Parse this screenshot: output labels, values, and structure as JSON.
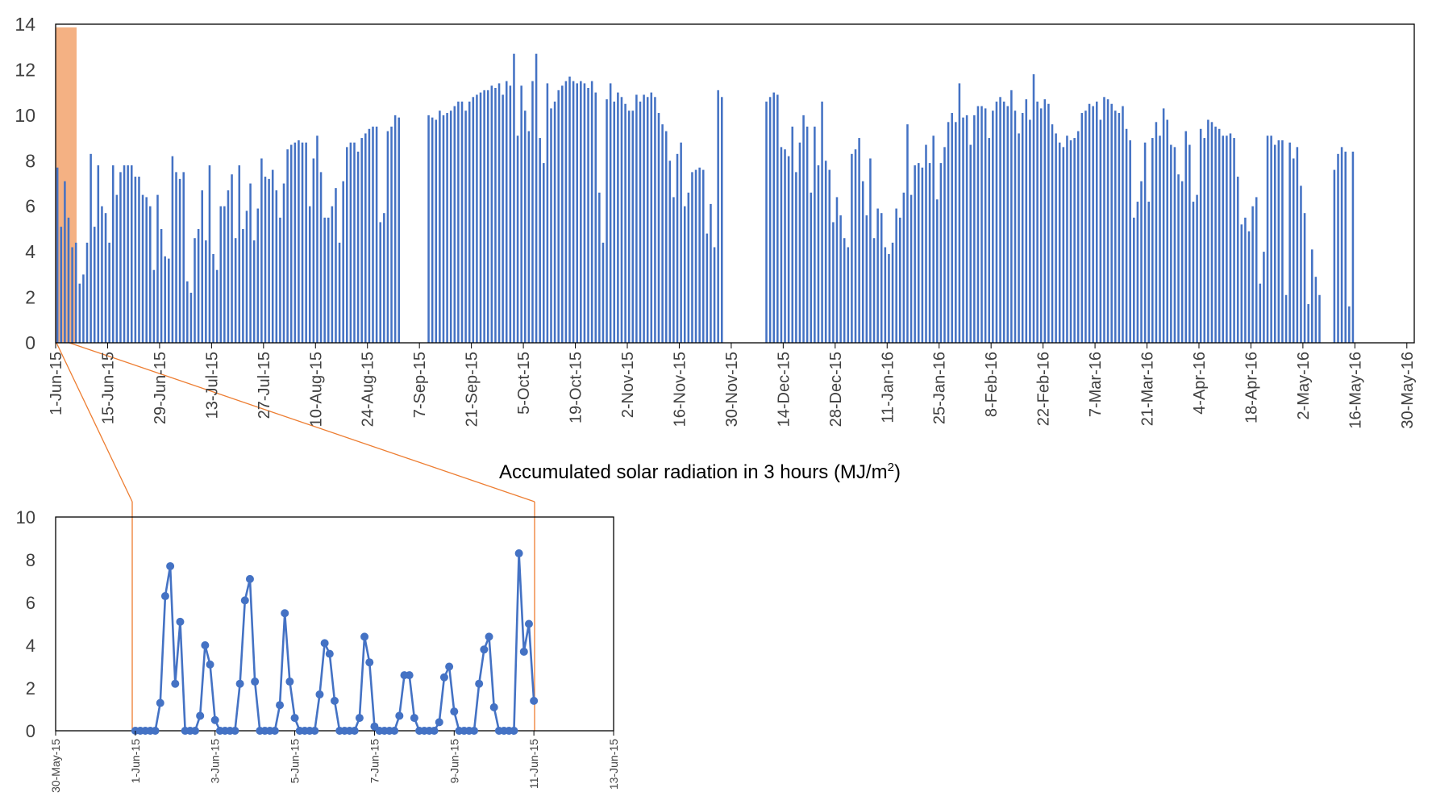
{
  "caption": "Accumulated solar radiation in 3 hours (MJ/m²)",
  "caption_main": "Accumulated solar radiation in 3 hours (MJ/m",
  "caption_sup": "2",
  "caption_end": ")",
  "colors": {
    "bar": "#4472c4",
    "line": "#4472c4",
    "highlight": "#f4b183",
    "connector": "#ed7d31",
    "axis": "#000000",
    "text": "#404040"
  },
  "chart_data": [
    {
      "type": "bar",
      "x_start": "1-Jun-15",
      "x_end": "31-May-16",
      "x_tick_labels": [
        "1-Jun-15",
        "15-Jun-15",
        "29-Jun-15",
        "13-Jul-15",
        "27-Jul-15",
        "10-Aug-15",
        "24-Aug-15",
        "7-Sep-15",
        "21-Sep-15",
        "5-Oct-15",
        "19-Oct-15",
        "2-Nov-15",
        "16-Nov-15",
        "30-Nov-15",
        "14-Dec-15",
        "28-Dec-15",
        "11-Jan-16",
        "25-Jan-16",
        "8-Feb-16",
        "22-Feb-16",
        "7-Mar-16",
        "21-Mar-16",
        "4-Apr-16",
        "18-Apr-16",
        "2-May-16",
        "16-May-16",
        "30-May-16"
      ],
      "y_ticks": [
        0,
        2,
        4,
        6,
        8,
        10,
        12,
        14
      ],
      "ylim": [
        0,
        14
      ],
      "highlight_range": [
        "1-Jun-15",
        "6-Jun-15"
      ],
      "missing_ranges": [
        [
          "2-Sep-15",
          "8-Sep-15"
        ],
        [
          "28-Nov-15",
          "8-Dec-15"
        ],
        [
          "7-May-16",
          "9-May-16"
        ]
      ],
      "series": [
        {
          "values": [
            7.7,
            5.1,
            7.1,
            5.5,
            4.2,
            4.4,
            2.6,
            3.0,
            4.4,
            8.3,
            5.1,
            7.8,
            6.0,
            5.7,
            4.4,
            7.8,
            6.5,
            7.5,
            7.8,
            7.8,
            7.8,
            7.3,
            7.3,
            6.5,
            6.4,
            6.0,
            3.2,
            6.5,
            5.0,
            3.8,
            3.7,
            8.2,
            7.5,
            7.2,
            7.5,
            2.7,
            2.2,
            4.6,
            5.0,
            6.7,
            4.5,
            7.8,
            3.9,
            3.2,
            6.0,
            6.0,
            6.7,
            7.4,
            4.6,
            7.8,
            5.0,
            5.8,
            7.0,
            4.5,
            5.9,
            8.1,
            7.3,
            7.2,
            7.6,
            6.7,
            5.5,
            7.0,
            8.5,
            8.7,
            8.8,
            8.9,
            8.8,
            8.8,
            6.0,
            8.1,
            9.1,
            7.5,
            5.5,
            5.5,
            6.0,
            6.8,
            4.4,
            7.1,
            8.6,
            8.8,
            8.8,
            8.4,
            9.0,
            9.2,
            9.4,
            9.5,
            9.5,
            5.3,
            5.7,
            9.3,
            9.5,
            10.0,
            9.9,
            10.0,
            9.9,
            9.8,
            10.2,
            10.0,
            10.1,
            10.2,
            10.4,
            10.6,
            10.6,
            10.2,
            10.6,
            10.8,
            10.9,
            11.0,
            11.1,
            11.1,
            11.3,
            11.2,
            11.4,
            10.9,
            11.5,
            11.3,
            12.7,
            9.1,
            11.3,
            10.2,
            9.3,
            11.5,
            12.7,
            9.0,
            7.9,
            11.4,
            10.3,
            10.6,
            11.1,
            11.3,
            11.5,
            11.7,
            11.5,
            11.4,
            11.5,
            11.4,
            11.2,
            11.5,
            11.0,
            6.6,
            4.4,
            10.7,
            11.4,
            10.6,
            11.0,
            10.8,
            10.5,
            10.2,
            10.2,
            10.9,
            10.6,
            10.9,
            10.8,
            11.0,
            10.8,
            10.1,
            9.6,
            9.3,
            8.0,
            6.4,
            8.3,
            8.8,
            6.0,
            6.6,
            7.5,
            7.6,
            7.7,
            7.6,
            4.8,
            6.1,
            4.2,
            11.1,
            10.8,
            10.6,
            10.8,
            11.0,
            10.9,
            8.6,
            8.5,
            8.2,
            9.5,
            7.5,
            8.8,
            10.0,
            9.5,
            6.6,
            9.5,
            7.8,
            10.6,
            8.0,
            7.6,
            5.3,
            6.4,
            5.6,
            4.6,
            4.2,
            8.3,
            8.5,
            9.0,
            7.1,
            5.6,
            8.1,
            4.6,
            5.9,
            5.7,
            4.2,
            3.9,
            4.4,
            5.9,
            5.5,
            6.6,
            9.6,
            6.5,
            7.8,
            7.9,
            7.7,
            8.7,
            7.9,
            9.1,
            6.3,
            7.9,
            8.6,
            9.7,
            10.1,
            9.7,
            11.4,
            9.9,
            10.0,
            8.7,
            10.0,
            10.4,
            10.4,
            10.3,
            9.0,
            10.2,
            10.6,
            10.8,
            10.6,
            10.4,
            11.1,
            10.2,
            9.2,
            10.1,
            10.7,
            9.8,
            11.8,
            10.6,
            10.3,
            10.7,
            10.5,
            9.6,
            9.2,
            8.8,
            8.6,
            9.1,
            8.9,
            9.0,
            9.3,
            10.1,
            10.2,
            10.5,
            10.4,
            10.6,
            9.8,
            10.8,
            10.7,
            10.5,
            10.2,
            10.1,
            10.4,
            9.4,
            8.9,
            5.5,
            6.2,
            7.1,
            8.8,
            6.2,
            9.0,
            9.7,
            9.1,
            10.3,
            9.8,
            8.7,
            8.6,
            7.4,
            7.1,
            9.3,
            8.7,
            6.2,
            6.5,
            9.4,
            9.0,
            9.8,
            9.7,
            9.5,
            9.4,
            9.1,
            9.1,
            9.2,
            9.0,
            7.3,
            5.2,
            5.5,
            4.9,
            6.0,
            6.4,
            2.6,
            4.0,
            9.1,
            9.1,
            8.7,
            8.9,
            8.9,
            2.1,
            8.8,
            8.1,
            8.6,
            6.9,
            5.7,
            1.7,
            4.1,
            2.9,
            2.1,
            7.6,
            8.3,
            8.6,
            8.4,
            1.6,
            8.4
          ]
        }
      ]
    },
    {
      "type": "line",
      "x_tick_labels": [
        "30-May-15",
        "1-Jun-15",
        "3-Jun-15",
        "5-Jun-15",
        "7-Jun-15",
        "9-Jun-15",
        "11-Jun-15",
        "13-Jun-15"
      ],
      "x_start": "1-Jun-15",
      "interval_hours": 3,
      "y_ticks": [
        0,
        2,
        4,
        6,
        8,
        10
      ],
      "ylim": [
        0,
        10
      ],
      "series": [
        {
          "values": [
            0,
            0,
            0,
            0,
            0,
            1.3,
            6.3,
            7.7,
            2.2,
            5.1,
            0,
            0,
            0,
            0.7,
            4.0,
            3.1,
            0.5,
            0,
            0,
            0,
            0,
            2.2,
            6.1,
            7.1,
            2.3,
            0,
            0,
            0,
            0,
            1.2,
            5.5,
            2.3,
            0.6,
            0,
            0,
            0,
            0,
            1.7,
            4.1,
            3.6,
            1.4,
            0,
            0,
            0,
            0,
            0.6,
            4.4,
            3.2,
            0.2,
            0,
            0,
            0,
            0,
            0.7,
            2.6,
            2.6,
            0.6,
            0,
            0,
            0,
            0,
            0.4,
            2.5,
            3.0,
            0.9,
            0,
            0,
            0,
            0,
            2.2,
            3.8,
            4.4,
            1.1,
            0,
            0,
            0,
            0,
            8.3,
            3.7,
            5.0,
            1.4
          ]
        }
      ]
    }
  ]
}
